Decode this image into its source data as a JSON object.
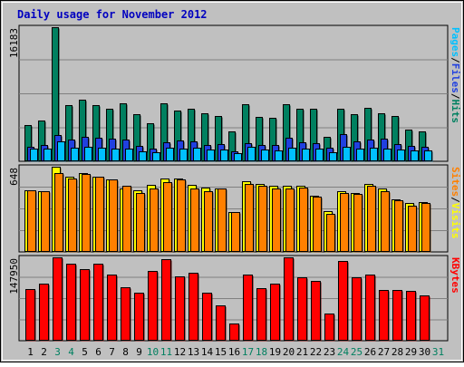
{
  "chart_data": {
    "type": "bar",
    "title": "Daily usage for November 2012",
    "categories": [
      "1",
      "2",
      "3",
      "4",
      "5",
      "6",
      "7",
      "8",
      "9",
      "10",
      "11",
      "12",
      "13",
      "14",
      "15",
      "16",
      "17",
      "18",
      "19",
      "20",
      "21",
      "22",
      "23",
      "24",
      "25",
      "26",
      "27",
      "28",
      "29",
      "30",
      "31"
    ],
    "weekend_days": [
      "3",
      "4",
      "10",
      "11",
      "17",
      "18",
      "24",
      "25",
      "31"
    ],
    "panels": [
      {
        "id": "requests",
        "max_label": "16183",
        "legend": [
          "Pages",
          "/",
          "Files",
          "/",
          "Hits"
        ],
        "legend_colors": [
          "#00c0ff",
          "#000000",
          "#2040e0",
          "#000000",
          "#008060"
        ],
        "ylim": [
          0,
          16183
        ],
        "series": [
          {
            "name": "Hits",
            "color": "#008060",
            "values": [
              4400,
              4900,
              16183,
              6800,
              7400,
              6800,
              6300,
              7000,
              5700,
              4600,
              7000,
              6100,
              6300,
              5800,
              5500,
              3600,
              6900,
              5400,
              5200,
              6900,
              6300,
              6300,
              3000,
              6300,
              5700,
              6500,
              5800,
              5500,
              3800,
              3600,
              null
            ]
          },
          {
            "name": "Files",
            "color": "#2040e0",
            "values": [
              1800,
              2000,
              3200,
              2600,
              2900,
              2800,
              2700,
              2600,
              1900,
              1500,
              2300,
              2500,
              2400,
              2000,
              2100,
              1200,
              2200,
              2000,
              2000,
              2800,
              2300,
              2200,
              1600,
              3300,
              2400,
              2600,
              2700,
              2100,
              1900,
              1700,
              null
            ]
          },
          {
            "name": "Pages",
            "color": "#00c0ff",
            "values": [
              1500,
              1500,
              2400,
              1600,
              1700,
              1600,
              1500,
              1500,
              1200,
              1100,
              1600,
              1500,
              1600,
              1400,
              1400,
              1000,
              1700,
              1400,
              1300,
              1600,
              1500,
              1500,
              1100,
              1700,
              1500,
              1600,
              1500,
              1400,
              1300,
              1300,
              null
            ]
          }
        ]
      },
      {
        "id": "visitors",
        "max_label": "648",
        "legend": [
          "Sites",
          "/",
          "Visits"
        ],
        "legend_colors": [
          "#ff8000",
          "#000000",
          "#ffff00"
        ],
        "ylim": [
          0,
          648
        ],
        "series": [
          {
            "name": "Visits",
            "color": "#ffff00",
            "values": [
              470,
              460,
              648,
              570,
              600,
              570,
              550,
              480,
              470,
              510,
              560,
              560,
              510,
              490,
              480,
              300,
              540,
              520,
              500,
              500,
              500,
              430,
              310,
              460,
              450,
              520,
              480,
              400,
              370,
              380,
              null
            ]
          },
          {
            "name": "Sites",
            "color": "#ff8000",
            "values": [
              470,
              460,
              600,
              560,
              590,
              570,
              550,
              500,
              450,
              480,
              530,
              550,
              480,
              460,
              480,
              300,
              520,
              500,
              480,
              480,
              490,
              420,
              290,
              450,
              440,
              500,
              460,
              390,
              350,
              370,
              null
            ]
          }
        ]
      },
      {
        "id": "kbytes",
        "max_label": "147950",
        "legend": [
          "KBytes"
        ],
        "legend_colors": [
          "#ff0000"
        ],
        "ylim": [
          0,
          147950
        ],
        "series": [
          {
            "name": "KBytes",
            "color": "#ff0000",
            "values": [
              92000,
              101000,
              147950,
              137000,
              127000,
              136000,
              117000,
              95000,
              85000,
              124000,
              144000,
              114000,
              121000,
              86000,
              63000,
              31000,
              118000,
              94000,
              101000,
              147950,
              112000,
              106000,
              48000,
              142000,
              113000,
              117000,
              90000,
              90000,
              89000,
              81000,
              null
            ]
          }
        ]
      }
    ]
  }
}
